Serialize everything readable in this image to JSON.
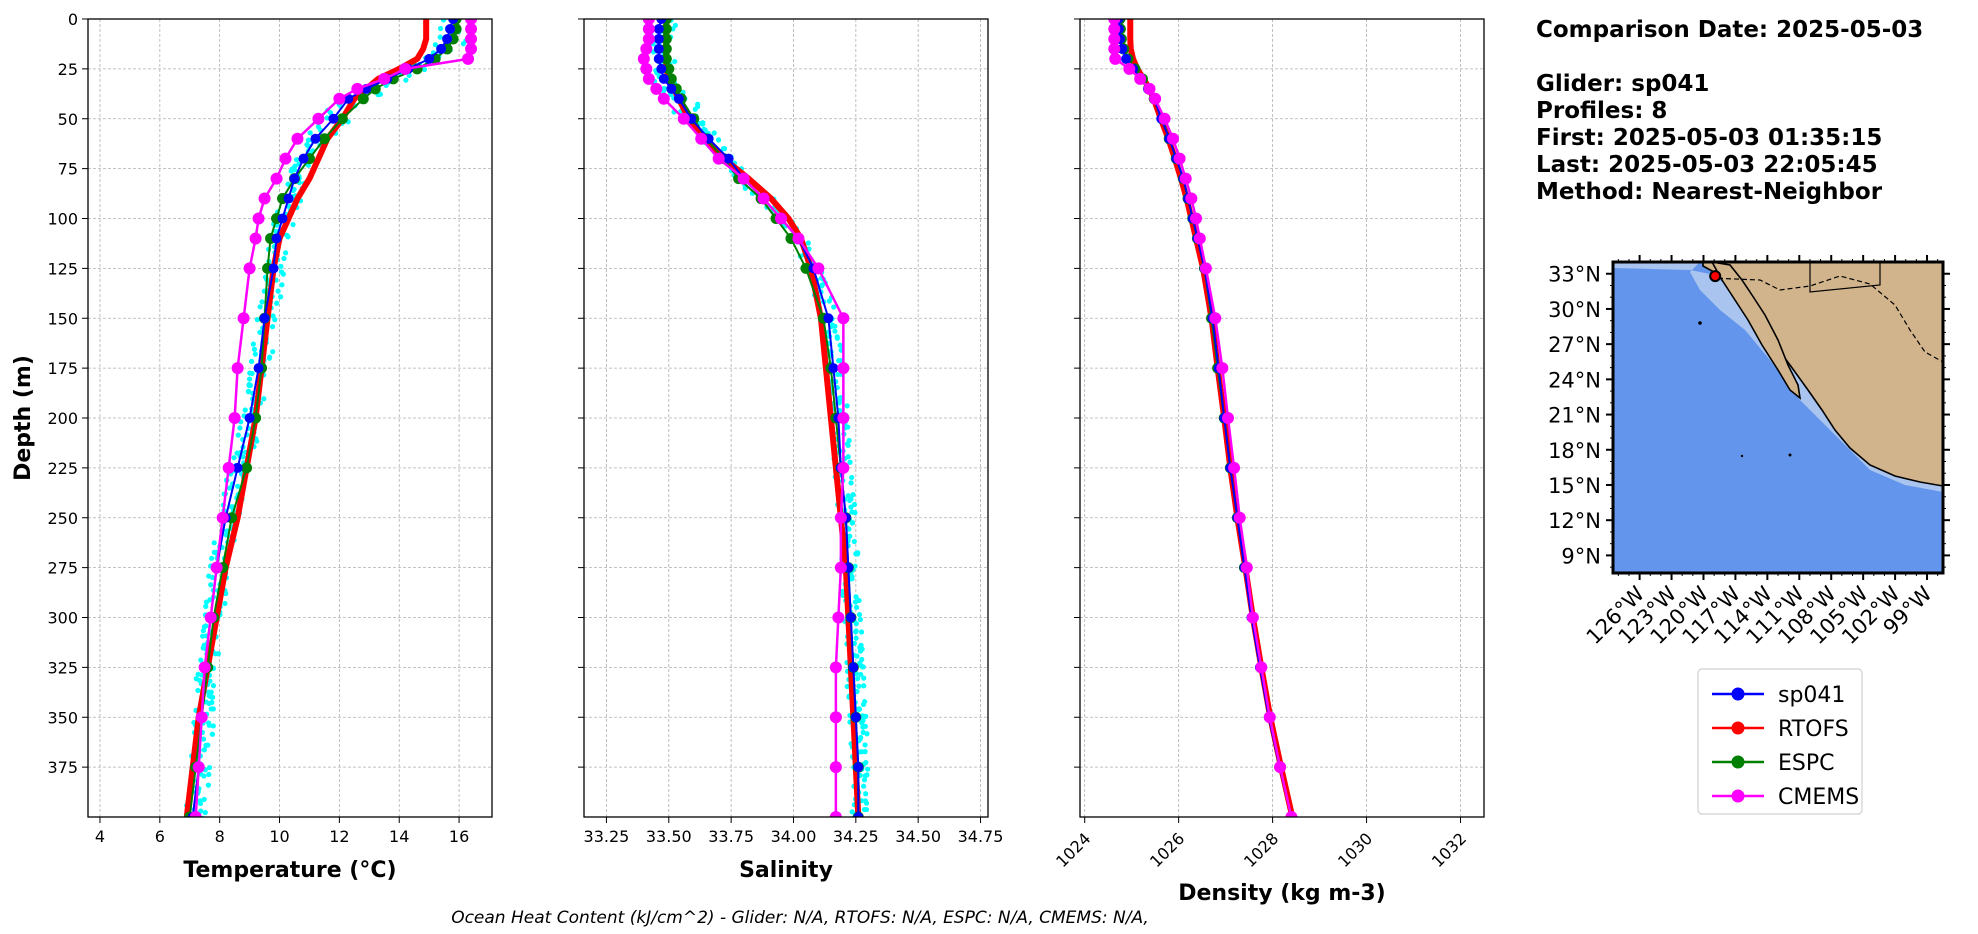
{
  "info": {
    "comparison_date": "Comparison Date: 2025-05-03",
    "glider": "Glider: sp041",
    "profiles": "Profiles: 8",
    "first": "First: 2025-05-03 01:35:15",
    "last": "Last: 2025-05-03 22:05:45",
    "method": "Method: Nearest-Neighbor"
  },
  "footer": "Ocean Heat Content (kJ/cm^2) - Glider: N/A,  RTOFS: N/A,  ESPC: N/A,  CMEMS: N/A,",
  "colors": {
    "sp041": "#0000ff",
    "RTOFS": "#ff0000",
    "ESPC": "#008000",
    "CMEMS": "#ff00ff",
    "raw": "#00ffff",
    "ocean": "#6495ed",
    "shelf": "#a9c4ee",
    "land": "#d2b48c"
  },
  "legend": [
    "sp041",
    "RTOFS",
    "ESPC",
    "CMEMS"
  ],
  "chart_data": [
    {
      "type": "line",
      "xlabel": "Temperature (°C)",
      "ylabel": "Depth (m)",
      "xlim": [
        3.6,
        17.1
      ],
      "ylim": [
        400,
        0
      ],
      "xticks": [
        "4",
        "6",
        "8",
        "10",
        "12",
        "14",
        "16"
      ],
      "yticks": [
        "0",
        "25",
        "50",
        "75",
        "100",
        "125",
        "150",
        "175",
        "200",
        "225",
        "250",
        "275",
        "300",
        "325",
        "350",
        "375"
      ],
      "grid": true,
      "depth": [
        0,
        5,
        10,
        15,
        20,
        25,
        30,
        35,
        40,
        50,
        60,
        70,
        80,
        90,
        100,
        110,
        125,
        150,
        175,
        200,
        225,
        250,
        275,
        300,
        325,
        350,
        375,
        400
      ],
      "series": [
        {
          "name": "sp041",
          "values": [
            15.8,
            15.7,
            15.6,
            15.4,
            15.0,
            14.3,
            13.6,
            12.9,
            12.3,
            11.8,
            11.2,
            10.8,
            10.5,
            10.3,
            10.1,
            9.9,
            9.8,
            9.5,
            9.3,
            9.0,
            8.6,
            8.2,
            7.9,
            7.7,
            7.5,
            7.4,
            7.3,
            7.1
          ]
        },
        {
          "name": "RTOFS",
          "values": [
            14.9,
            14.9,
            14.9,
            14.8,
            14.6,
            14.0,
            13.3,
            12.9,
            12.5,
            12.1,
            11.6,
            11.3,
            11.0,
            10.6,
            10.3,
            10.0,
            9.8,
            9.6,
            9.4,
            9.2,
            8.9,
            8.6,
            8.2,
            7.9,
            7.6,
            7.3,
            7.1,
            6.9
          ]
        },
        {
          "name": "ESPC",
          "values": [
            15.9,
            15.9,
            15.8,
            15.6,
            15.2,
            14.6,
            13.8,
            13.2,
            12.8,
            12.1,
            11.5,
            11.0,
            10.5,
            10.1,
            9.9,
            9.7,
            9.6,
            9.5,
            9.4,
            9.2,
            8.9,
            8.4,
            8.1,
            7.8,
            7.6,
            7.4,
            7.2,
            7.0
          ]
        },
        {
          "name": "CMEMS",
          "values": [
            16.4,
            16.4,
            16.4,
            16.4,
            16.3,
            14.2,
            13.5,
            12.6,
            12.0,
            11.3,
            10.6,
            10.2,
            9.9,
            9.5,
            9.3,
            9.2,
            9.0,
            8.8,
            8.6,
            8.5,
            8.3,
            8.1,
            7.9,
            7.7,
            7.5,
            7.4,
            7.3,
            7.2
          ]
        }
      ]
    },
    {
      "type": "line",
      "xlabel": "Salinity",
      "ylabel": "",
      "xlim": [
        33.16,
        34.78
      ],
      "ylim": [
        400,
        0
      ],
      "xticks": [
        "33.25",
        "33.50",
        "33.75",
        "34.00",
        "34.25",
        "34.50",
        "34.75"
      ],
      "grid": true,
      "depth": [
        0,
        5,
        10,
        15,
        20,
        25,
        30,
        35,
        40,
        50,
        60,
        70,
        80,
        90,
        100,
        110,
        125,
        150,
        175,
        200,
        225,
        250,
        275,
        300,
        325,
        350,
        375,
        400
      ],
      "series": [
        {
          "name": "sp041",
          "values": [
            33.47,
            33.46,
            33.46,
            33.46,
            33.46,
            33.47,
            33.48,
            33.51,
            33.54,
            33.59,
            33.66,
            33.74,
            33.8,
            33.88,
            33.95,
            34.02,
            34.08,
            34.14,
            34.16,
            34.18,
            34.19,
            34.21,
            34.22,
            34.23,
            34.24,
            34.25,
            34.26,
            34.26
          ]
        },
        {
          "name": "RTOFS",
          "values": [
            33.49,
            33.49,
            33.49,
            33.49,
            33.49,
            33.49,
            33.5,
            33.52,
            33.54,
            33.58,
            33.64,
            33.72,
            33.82,
            33.91,
            33.98,
            34.03,
            34.07,
            34.11,
            34.13,
            34.15,
            34.17,
            34.19,
            34.21,
            34.22,
            34.23,
            34.24,
            34.25,
            34.26
          ]
        },
        {
          "name": "ESPC",
          "values": [
            33.49,
            33.49,
            33.49,
            33.49,
            33.49,
            33.5,
            33.51,
            33.53,
            33.55,
            33.6,
            33.65,
            33.72,
            33.78,
            33.87,
            33.93,
            33.99,
            34.05,
            34.12,
            34.15,
            34.17,
            34.19,
            34.21,
            34.22,
            34.23,
            34.24,
            34.25,
            34.26,
            34.26
          ]
        },
        {
          "name": "CMEMS",
          "values": [
            33.42,
            33.42,
            33.42,
            33.41,
            33.4,
            33.41,
            33.42,
            33.45,
            33.48,
            33.56,
            33.63,
            33.7,
            33.8,
            33.88,
            33.95,
            34.02,
            34.1,
            34.2,
            34.2,
            34.2,
            34.2,
            34.19,
            34.19,
            34.18,
            34.17,
            34.17,
            34.17,
            34.17
          ]
        }
      ]
    },
    {
      "type": "line",
      "xlabel": "Density (kg m-3)",
      "ylabel": "",
      "xlim": [
        1023.9,
        1032.5
      ],
      "ylim": [
        400,
        0
      ],
      "xticks": [
        "1024",
        "1026",
        "1028",
        "1030",
        "1032"
      ],
      "grid": true,
      "depth": [
        0,
        5,
        10,
        15,
        20,
        25,
        30,
        35,
        40,
        50,
        60,
        70,
        80,
        90,
        100,
        110,
        125,
        150,
        175,
        200,
        225,
        250,
        275,
        300,
        325,
        350,
        375,
        400
      ],
      "series": [
        {
          "name": "sp041",
          "values": [
            1024.72,
            1024.73,
            1024.75,
            1024.8,
            1024.88,
            1025.03,
            1025.2,
            1025.35,
            1025.48,
            1025.63,
            1025.8,
            1025.95,
            1026.1,
            1026.2,
            1026.3,
            1026.4,
            1026.55,
            1026.72,
            1026.85,
            1026.97,
            1027.1,
            1027.25,
            1027.4,
            1027.55,
            1027.73,
            1027.92,
            1028.15,
            1028.4
          ]
        },
        {
          "name": "RTOFS",
          "values": [
            1024.97,
            1024.97,
            1024.97,
            1024.98,
            1025.03,
            1025.12,
            1025.25,
            1025.38,
            1025.47,
            1025.62,
            1025.78,
            1025.92,
            1026.05,
            1026.17,
            1026.27,
            1026.37,
            1026.52,
            1026.7,
            1026.83,
            1026.97,
            1027.1,
            1027.25,
            1027.42,
            1027.58,
            1027.76,
            1027.95,
            1028.18,
            1028.42
          ]
        },
        {
          "name": "ESPC",
          "values": [
            1024.75,
            1024.76,
            1024.78,
            1024.83,
            1024.92,
            1025.07,
            1025.23,
            1025.36,
            1025.48,
            1025.65,
            1025.8,
            1025.95,
            1026.1,
            1026.2,
            1026.3,
            1026.4,
            1026.55,
            1026.7,
            1026.83,
            1026.97,
            1027.1,
            1027.25,
            1027.4,
            1027.57,
            1027.75,
            1027.93,
            1028.15,
            1028.4
          ]
        },
        {
          "name": "CMEMS",
          "values": [
            1024.63,
            1024.63,
            1024.63,
            1024.63,
            1024.65,
            1024.95,
            1025.18,
            1025.38,
            1025.5,
            1025.7,
            1025.88,
            1026.02,
            1026.15,
            1026.27,
            1026.37,
            1026.45,
            1026.58,
            1026.78,
            1026.93,
            1027.05,
            1027.18,
            1027.3,
            1027.45,
            1027.58,
            1027.76,
            1027.94,
            1028.16,
            1028.4
          ]
        }
      ]
    }
  ],
  "map": {
    "lat_labels": [
      "33°N",
      "30°N",
      "27°N",
      "24°N",
      "21°N",
      "18°N",
      "15°N",
      "12°N",
      "9°N"
    ],
    "lon_labels": [
      "126°W",
      "123°W",
      "120°W",
      "117°W",
      "114°W",
      "111°W",
      "108°W",
      "105°W",
      "102°W",
      "99°W"
    ],
    "glider_position": {
      "lat": 32.8,
      "lon": -118.9
    }
  }
}
